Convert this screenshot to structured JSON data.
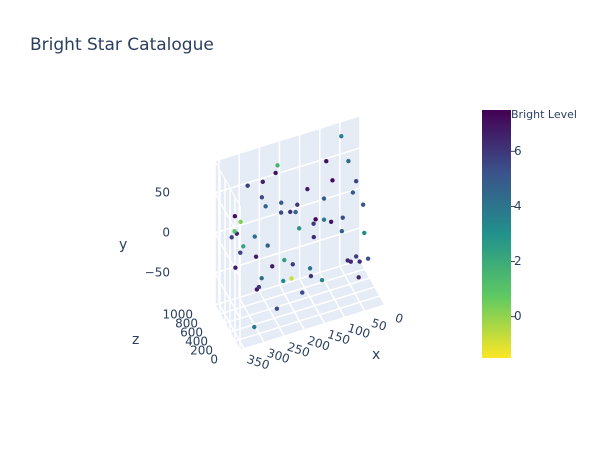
{
  "chart_data": {
    "type": "scatter3d",
    "title": "Bright Star Catalogue",
    "x_label": "x",
    "y_label": "y",
    "z_label": "z",
    "x": [
      12,
      45,
      78,
      103,
      137,
      160,
      189,
      214,
      243,
      271,
      298,
      326,
      351,
      25,
      58,
      90,
      118,
      151,
      176,
      203,
      229,
      262,
      287,
      314,
      340,
      8,
      66,
      99,
      131,
      170,
      197,
      238,
      255,
      305,
      333,
      19,
      52,
      84,
      145,
      182,
      221,
      249,
      279,
      318,
      345,
      35,
      71,
      112,
      165,
      208,
      234,
      268,
      292,
      322,
      356,
      29,
      95,
      155,
      225,
      310
    ],
    "y": [
      -80,
      34,
      -12,
      67,
      -55,
      8,
      81,
      -33,
      50,
      -71,
      19,
      -4,
      62,
      -88,
      40,
      -25,
      73,
      -60,
      12,
      -45,
      86,
      -17,
      55,
      -78,
      27,
      -38,
      70,
      -2,
      45,
      -66,
      22,
      -85,
      60,
      -10,
      37,
      -50,
      78,
      -29,
      5,
      -74,
      48,
      -15,
      64,
      -42,
      31,
      -57,
      83,
      -20,
      10,
      -68,
      53,
      -35,
      75,
      -8,
      42,
      -82,
      25,
      -48,
      68,
      -22
    ],
    "z": [
      820,
      150,
      470,
      690,
      310,
      930,
      60,
      580,
      240,
      760,
      410,
      880,
      120,
      650,
      350,
      990,
      200,
      530,
      740,
      40,
      610,
      290,
      870,
      170,
      450,
      700,
      90,
      560,
      330,
      950,
      260,
      490,
      780,
      20,
      640,
      370,
      910,
      140,
      520,
      810,
      230,
      680,
      430,
      860,
      110,
      590,
      320,
      970,
      190,
      720,
      380,
      840,
      70,
      600,
      280,
      900,
      160,
      500,
      750,
      50
    ],
    "values": [
      6.2,
      5.1,
      4.8,
      7.1,
      3.5,
      5.9,
      6.7,
      2.4,
      5.5,
      6.9,
      4.2,
      5.7,
      0.3,
      6.4,
      5.0,
      3.8,
      7.3,
      6.1,
      4.5,
      5.3,
      1.6,
      6.8,
      5.8,
      4.0,
      6.5,
      3.1,
      5.6,
      7.0,
      4.9,
      6.0,
      2.8,
      5.4,
      6.6,
      4.3,
      7.2,
      5.2,
      3.6,
      6.3,
      5.9,
      -0.8,
      6.1,
      4.7,
      5.5,
      6.9,
      2.1,
      5.8,
      4.4,
      7.4,
      6.2,
      3.3,
      5.0,
      6.7,
      4.6,
      5.7,
      1.1,
      6.4,
      5.3,
      4.1,
      7.0,
      6.0
    ],
    "xlim": [
      0,
      360
    ],
    "ylim": [
      -90,
      90
    ],
    "zlim": [
      0,
      1000
    ],
    "xticks": [
      0,
      50,
      100,
      150,
      200,
      250,
      300,
      350
    ],
    "yticks": [
      {
        "value": -50,
        "label": "−50"
      },
      0,
      50
    ],
    "zticks": [
      0,
      200,
      400,
      600,
      800,
      1000
    ],
    "colorbar_title": "Bright Level",
    "clim": [
      -1.5,
      7.5
    ],
    "colorbar_ticks": [
      0,
      2,
      4,
      6
    ],
    "colorscale": [
      "#fde725",
      "#5ec962",
      "#21918c",
      "#3b528b",
      "#440154"
    ]
  }
}
